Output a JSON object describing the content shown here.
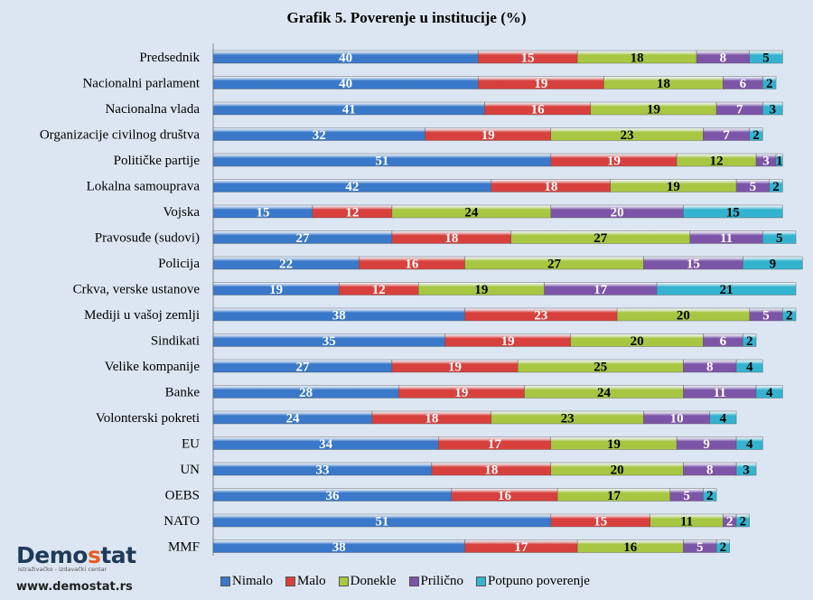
{
  "chart_data": {
    "type": "bar",
    "orientation": "horizontal-stacked",
    "title": "Grafik  5. Poverenje u institucije  (%)",
    "categories": [
      "Predsednik",
      "Nacionalni parlament",
      "Nacionalna vlada",
      "Organizacije civilnog društva",
      "Političke partije",
      "Lokalna samouprava",
      "Vojska",
      "Pravosuđe (sudovi)",
      "Policija",
      "Crkva, verske ustanove",
      "Mediji u vašoj zemlji",
      "Sindikati",
      "Velike kompanije",
      "Banke",
      "Volonterski pokreti",
      "EU",
      "UN",
      "OEBS",
      "NATO",
      "MMF"
    ],
    "series": [
      {
        "name": "Nimalo",
        "color": "#3a78c9",
        "label_color": "#ffffff",
        "values": [
          40,
          40,
          41,
          32,
          51,
          42,
          15,
          27,
          22,
          19,
          38,
          35,
          27,
          28,
          24,
          34,
          33,
          36,
          51,
          38
        ]
      },
      {
        "name": "Malo",
        "color": "#d8403d",
        "label_color": "#ffffff",
        "values": [
          15,
          19,
          16,
          19,
          19,
          18,
          12,
          18,
          16,
          12,
          23,
          19,
          19,
          19,
          18,
          17,
          18,
          16,
          15,
          17
        ]
      },
      {
        "name": "Donekle",
        "color": "#a7c742",
        "label_color": "#000000",
        "values": [
          18,
          18,
          19,
          23,
          12,
          19,
          24,
          27,
          27,
          19,
          20,
          20,
          25,
          24,
          23,
          19,
          20,
          17,
          11,
          16
        ]
      },
      {
        "name": "Prilično",
        "color": "#7d55a8",
        "label_color": "#ffffff",
        "values": [
          8,
          6,
          7,
          7,
          3,
          5,
          20,
          11,
          15,
          17,
          5,
          6,
          8,
          11,
          10,
          9,
          8,
          5,
          2,
          5
        ]
      },
      {
        "name": "Potpuno poverenje",
        "color": "#33b3cf",
        "label_color": "#000000",
        "values": [
          5,
          2,
          3,
          2,
          1,
          2,
          15,
          5,
          9,
          21,
          2,
          2,
          4,
          4,
          4,
          4,
          3,
          2,
          2,
          2
        ]
      }
    ],
    "xlim": [
      0,
      86
    ],
    "legend_position": "bottom"
  },
  "logo": {
    "brand_pre": "Demo",
    "brand_s": "s",
    "brand_post": "tat",
    "tagline": "istraživačko - izdavački  centar",
    "url": "www.demostat.rs"
  }
}
